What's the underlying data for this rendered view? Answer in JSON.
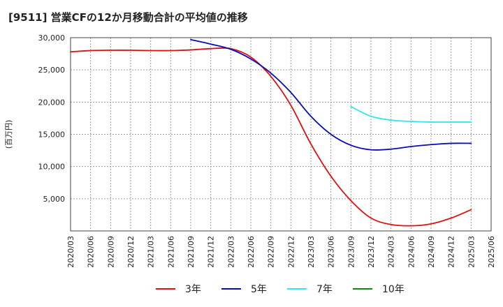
{
  "chart_data": {
    "type": "line",
    "title": "[9511]  営業CFの12か月移動合計の平均値の推移",
    "ylabel": "(百万円)",
    "xlabel": "",
    "ylim": [
      0,
      30000
    ],
    "yticks": [
      5000,
      10000,
      15000,
      20000,
      25000,
      30000
    ],
    "ytick_labels": [
      "5,000",
      "10,000",
      "15,000",
      "20,000",
      "25,000",
      "30,000"
    ],
    "x_ticks": [
      "2020/03",
      "2020/06",
      "2020/09",
      "2020/12",
      "2021/03",
      "2021/06",
      "2021/09",
      "2021/12",
      "2022/03",
      "2022/06",
      "2022/09",
      "2022/12",
      "2023/03",
      "2023/06",
      "2023/09",
      "2023/12",
      "2024/03",
      "2024/06",
      "2024/09",
      "2024/12",
      "2025/03",
      "2025/06"
    ],
    "grid": true,
    "legend_position": "bottom",
    "series": [
      {
        "name": "3年",
        "color": "#dd1111",
        "points": [
          [
            "2020/03",
            27800
          ],
          [
            "2020/06",
            28000
          ],
          [
            "2020/09",
            28050
          ],
          [
            "2020/12",
            28050
          ],
          [
            "2021/03",
            28000
          ],
          [
            "2021/06",
            28000
          ],
          [
            "2021/09",
            28100
          ],
          [
            "2021/12",
            28300
          ],
          [
            "2022/03",
            28300
          ],
          [
            "2022/06",
            27000
          ],
          [
            "2022/09",
            24000
          ],
          [
            "2022/12",
            19500
          ],
          [
            "2023/03",
            13500
          ],
          [
            "2023/06",
            8500
          ],
          [
            "2023/09",
            4700
          ],
          [
            "2023/12",
            2000
          ],
          [
            "2024/03",
            1000
          ],
          [
            "2024/06",
            800
          ],
          [
            "2024/09",
            1100
          ],
          [
            "2024/12",
            2000
          ],
          [
            "2025/03",
            3300
          ]
        ]
      },
      {
        "name": "5年",
        "color": "#0b0bbb",
        "points": [
          [
            "2021/09",
            29700
          ],
          [
            "2021/12",
            29000
          ],
          [
            "2022/03",
            28200
          ],
          [
            "2022/06",
            26700
          ],
          [
            "2022/09",
            24500
          ],
          [
            "2022/12",
            21500
          ],
          [
            "2023/03",
            17800
          ],
          [
            "2023/06",
            15000
          ],
          [
            "2023/09",
            13300
          ],
          [
            "2023/12",
            12600
          ],
          [
            "2024/03",
            12700
          ],
          [
            "2024/06",
            13100
          ],
          [
            "2024/09",
            13400
          ],
          [
            "2024/12",
            13600
          ],
          [
            "2025/03",
            13600
          ]
        ]
      },
      {
        "name": "7年",
        "color": "#33e6ee",
        "points": [
          [
            "2023/09",
            19300
          ],
          [
            "2023/12",
            17800
          ],
          [
            "2024/03",
            17200
          ],
          [
            "2024/06",
            17000
          ],
          [
            "2024/09",
            16900
          ],
          [
            "2024/12",
            16900
          ],
          [
            "2025/03",
            16900
          ]
        ]
      },
      {
        "name": "10年",
        "color": "#118811",
        "points": []
      }
    ]
  }
}
